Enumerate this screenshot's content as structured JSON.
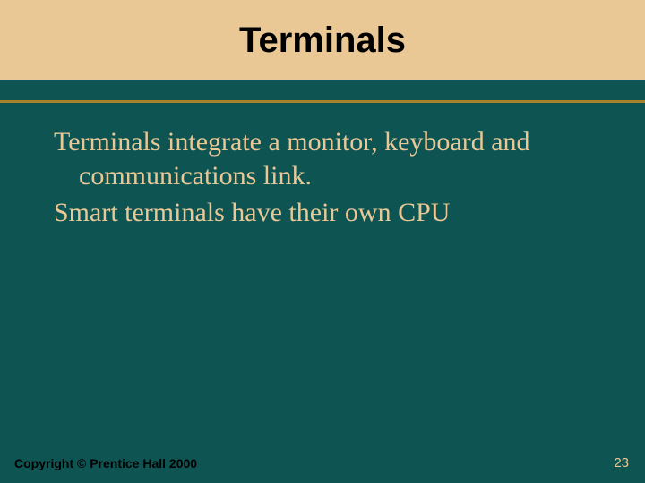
{
  "title": "Terminals",
  "body": {
    "p1": "Terminals integrate a monitor, keyboard and communications link.",
    "p2": "Smart terminals have their own CPU"
  },
  "footer": {
    "copyright": "Copyright © Prentice Hall 2000",
    "page": "23"
  },
  "colors": {
    "background": "#0e5453",
    "band": "#e9c896",
    "rule": "#a9832c",
    "body_text": "#e9c896"
  },
  "fonts": {
    "title_size_pt": 40,
    "body_size_pt": 30,
    "footer_size_pt": 14
  }
}
